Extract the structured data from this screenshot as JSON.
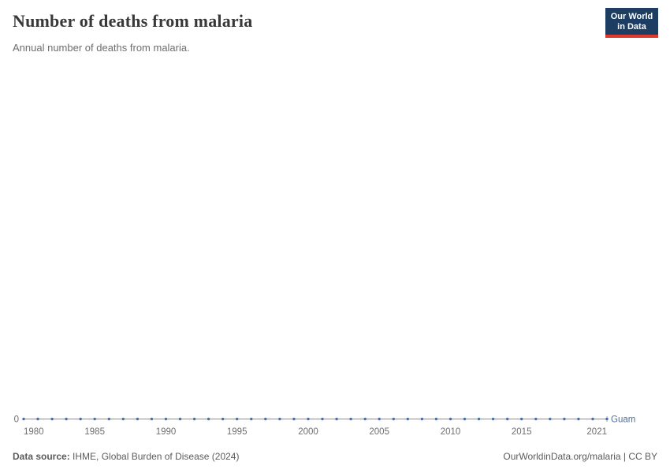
{
  "header": {
    "title": "Number of deaths from malaria",
    "subtitle": "Annual number of deaths from malaria."
  },
  "logo": {
    "line1": "Our World",
    "line2": "in Data",
    "bg_color": "#1d3d63",
    "accent_color": "#e0392e"
  },
  "chart_data": {
    "type": "line",
    "title": "Number of deaths from malaria",
    "subtitle": "Annual number of deaths from malaria.",
    "xlabel": "",
    "ylabel": "",
    "xlim": [
      1980,
      2021
    ],
    "ylim": [
      0,
      0
    ],
    "grid": false,
    "legend_position": "end-of-line-right",
    "x_ticks": [
      1980,
      1985,
      1990,
      1995,
      2000,
      2005,
      2010,
      2015,
      2021
    ],
    "y_ticks": [
      0
    ],
    "axis_color": "#a8a8a8",
    "tick_label_color": "#6e6e6e",
    "series": [
      {
        "name": "Guam",
        "color": "#4c6ea9",
        "x": [
          1980,
          1981,
          1982,
          1983,
          1984,
          1985,
          1986,
          1987,
          1988,
          1989,
          1990,
          1991,
          1992,
          1993,
          1994,
          1995,
          1996,
          1997,
          1998,
          1999,
          2000,
          2001,
          2002,
          2003,
          2004,
          2005,
          2006,
          2007,
          2008,
          2009,
          2010,
          2011,
          2012,
          2013,
          2014,
          2015,
          2016,
          2017,
          2018,
          2019,
          2020,
          2021
        ],
        "values": [
          0,
          0,
          0,
          0,
          0,
          0,
          0,
          0,
          0,
          0,
          0,
          0,
          0,
          0,
          0,
          0,
          0,
          0,
          0,
          0,
          0,
          0,
          0,
          0,
          0,
          0,
          0,
          0,
          0,
          0,
          0,
          0,
          0,
          0,
          0,
          0,
          0,
          0,
          0,
          0,
          0,
          0
        ]
      }
    ]
  },
  "footer": {
    "source_label": "Data source:",
    "source_text": " IHME, Global Burden of Disease (2024)",
    "right_text": "OurWorldinData.org/malaria | CC BY"
  }
}
